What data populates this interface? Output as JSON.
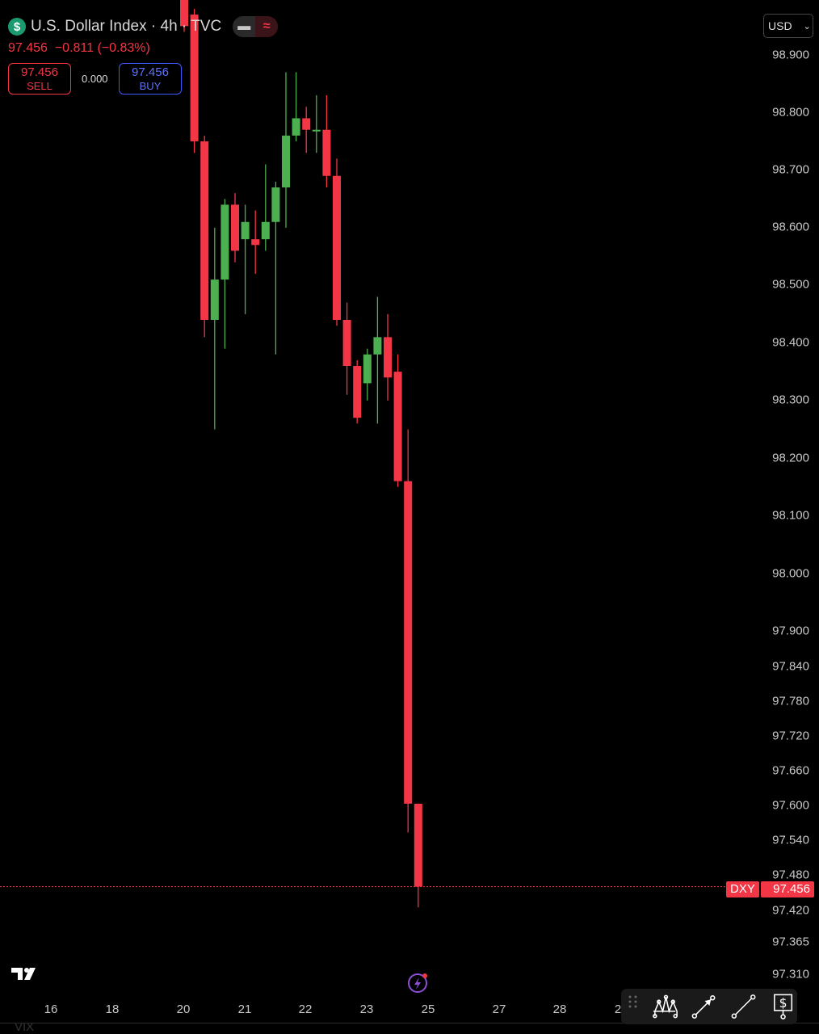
{
  "header": {
    "title": "U.S. Dollar Index · 4h · TVC",
    "icon": "dollar-icon",
    "price": "97.456",
    "change": "−0.811",
    "change_pct": "(−0.83%)"
  },
  "trade": {
    "sell_price": "97.456",
    "sell_label": "SELL",
    "spread": "0.000",
    "buy_price": "97.456",
    "buy_label": "BUY"
  },
  "currency": "USD",
  "price_tag": {
    "symbol": "DXY",
    "value": "97.456"
  },
  "watermark": "VIX",
  "colors": {
    "up": "#4caf50",
    "down": "#f23645",
    "background": "#000000"
  },
  "chart_data": {
    "type": "candlestick",
    "title": "U.S. Dollar Index · 4h · TVC",
    "ohlc": [
      {
        "o": 99.0,
        "h": 99.02,
        "l": 98.94,
        "c": 98.95
      },
      {
        "o": 98.97,
        "h": 98.98,
        "l": 98.73,
        "c": 98.75
      },
      {
        "o": 98.75,
        "h": 98.76,
        "l": 98.41,
        "c": 98.44
      },
      {
        "o": 98.44,
        "h": 98.6,
        "l": 98.25,
        "c": 98.51
      },
      {
        "o": 98.51,
        "h": 98.65,
        "l": 98.39,
        "c": 98.64
      },
      {
        "o": 98.64,
        "h": 98.66,
        "l": 98.54,
        "c": 98.56
      },
      {
        "o": 98.58,
        "h": 98.64,
        "l": 98.45,
        "c": 98.61
      },
      {
        "o": 98.58,
        "h": 98.63,
        "l": 98.52,
        "c": 98.57
      },
      {
        "o": 98.58,
        "h": 98.71,
        "l": 98.56,
        "c": 98.61
      },
      {
        "o": 98.61,
        "h": 98.68,
        "l": 98.38,
        "c": 98.67
      },
      {
        "o": 98.67,
        "h": 98.87,
        "l": 98.6,
        "c": 98.76
      },
      {
        "o": 98.76,
        "h": 98.87,
        "l": 98.75,
        "c": 98.79
      },
      {
        "o": 98.79,
        "h": 98.81,
        "l": 98.73,
        "c": 98.77
      },
      {
        "o": 98.77,
        "h": 98.83,
        "l": 98.73,
        "c": 98.77
      },
      {
        "o": 98.77,
        "h": 98.83,
        "l": 98.67,
        "c": 98.69
      },
      {
        "o": 98.69,
        "h": 98.72,
        "l": 98.43,
        "c": 98.44
      },
      {
        "o": 98.44,
        "h": 98.47,
        "l": 98.31,
        "c": 98.36
      },
      {
        "o": 98.36,
        "h": 98.37,
        "l": 98.26,
        "c": 98.27
      },
      {
        "o": 98.33,
        "h": 98.39,
        "l": 98.3,
        "c": 98.38
      },
      {
        "o": 98.38,
        "h": 98.48,
        "l": 98.26,
        "c": 98.41
      },
      {
        "o": 98.41,
        "h": 98.45,
        "l": 98.3,
        "c": 98.34
      },
      {
        "o": 98.35,
        "h": 98.38,
        "l": 98.15,
        "c": 98.16
      },
      {
        "o": 98.16,
        "h": 98.25,
        "l": 97.55,
        "c": 97.6
      },
      {
        "o": 97.6,
        "h": 97.6,
        "l": 97.42,
        "c": 97.456
      }
    ],
    "last_price": 97.456,
    "y_ticks": [
      "98.900",
      "98.800",
      "98.700",
      "98.600",
      "98.500",
      "98.400",
      "98.300",
      "98.200",
      "98.100",
      "98.000",
      "97.900",
      "97.840",
      "97.780",
      "97.720",
      "97.660",
      "97.600",
      "97.540",
      "97.480",
      "97.420",
      "97.365",
      "97.310"
    ],
    "x_ticks": [
      "16",
      "18",
      "20",
      "21",
      "22",
      "23",
      "25",
      "27",
      "28",
      "2"
    ],
    "ylim": [
      97.27,
      99.0
    ],
    "grid": false,
    "legend": "none"
  },
  "toolbar": {
    "items": [
      "drag-handle-icon",
      "pattern-tool-icon",
      "arrow-line-icon",
      "trend-line-icon",
      "price-label-icon"
    ]
  }
}
